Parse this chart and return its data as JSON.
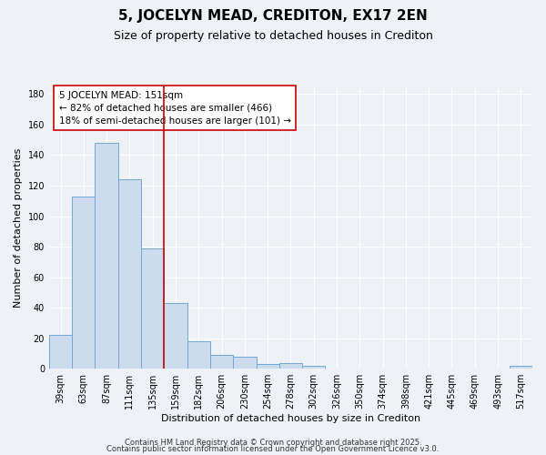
{
  "title": "5, JOCELYN MEAD, CREDITON, EX17 2EN",
  "subtitle": "Size of property relative to detached houses in Crediton",
  "xlabel": "Distribution of detached houses by size in Crediton",
  "ylabel": "Number of detached properties",
  "bin_labels": [
    "39sqm",
    "63sqm",
    "87sqm",
    "111sqm",
    "135sqm",
    "159sqm",
    "182sqm",
    "206sqm",
    "230sqm",
    "254sqm",
    "278sqm",
    "302sqm",
    "326sqm",
    "350sqm",
    "374sqm",
    "398sqm",
    "421sqm",
    "445sqm",
    "469sqm",
    "493sqm",
    "517sqm"
  ],
  "bar_values": [
    22,
    113,
    148,
    124,
    79,
    43,
    18,
    9,
    8,
    3,
    4,
    2,
    0,
    0,
    0,
    0,
    0,
    0,
    0,
    0,
    2
  ],
  "bar_color": "#ccdcee",
  "bar_edge_color": "#6fa8d6",
  "red_line_x": 5,
  "red_line_color": "#cc0000",
  "annotation_text": "5 JOCELYN MEAD: 151sqm\n← 82% of detached houses are smaller (466)\n18% of semi-detached houses are larger (101) →",
  "annotation_box_color": "#ffffff",
  "annotation_box_edge": "#cc0000",
  "ylim": [
    0,
    185
  ],
  "yticks": [
    0,
    20,
    40,
    60,
    80,
    100,
    120,
    140,
    160,
    180
  ],
  "footer1": "Contains HM Land Registry data © Crown copyright and database right 2025.",
  "footer2": "Contains public sector information licensed under the Open Government Licence v3.0.",
  "background_color": "#eef2f7",
  "grid_color": "#ffffff",
  "title_fontsize": 11,
  "subtitle_fontsize": 9,
  "axis_label_fontsize": 8,
  "tick_fontsize": 7,
  "annotation_fontsize": 7.5,
  "footer_fontsize": 6
}
